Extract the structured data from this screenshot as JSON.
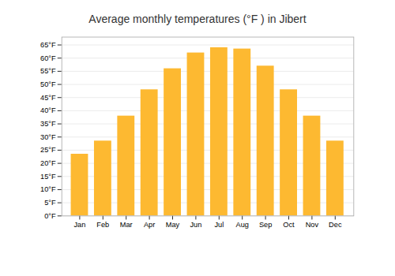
{
  "chart_data": {
    "type": "bar",
    "title": "Average monthly temperatures (°F ) in Jibert",
    "categories": [
      "Jan",
      "Feb",
      "Mar",
      "Apr",
      "May",
      "Jun",
      "Jul",
      "Aug",
      "Sep",
      "Oct",
      "Nov",
      "Dec"
    ],
    "values": [
      23.5,
      28.5,
      38.0,
      48.0,
      56.0,
      62.0,
      64.0,
      63.5,
      57.0,
      48.0,
      38.0,
      28.5
    ],
    "color": "#FDB931",
    "ylim": [
      0,
      68
    ],
    "yticks": [
      {
        "value": 0,
        "label": "0°F"
      },
      {
        "value": 5,
        "label": "5°F"
      },
      {
        "value": 10,
        "label": "10°F"
      },
      {
        "value": 15,
        "label": "15°F"
      },
      {
        "value": 20,
        "label": "20°F"
      },
      {
        "value": 25,
        "label": "25°F"
      },
      {
        "value": 30,
        "label": "30°F"
      },
      {
        "value": 35,
        "label": "35°F"
      },
      {
        "value": 40,
        "label": "40°F"
      },
      {
        "value": 45,
        "label": "45°F"
      },
      {
        "value": 50,
        "label": "50°F"
      },
      {
        "value": 55,
        "label": "55°F"
      },
      {
        "value": 60,
        "label": "60°F"
      },
      {
        "value": 65,
        "label": "65°F"
      }
    ],
    "grid": true
  }
}
